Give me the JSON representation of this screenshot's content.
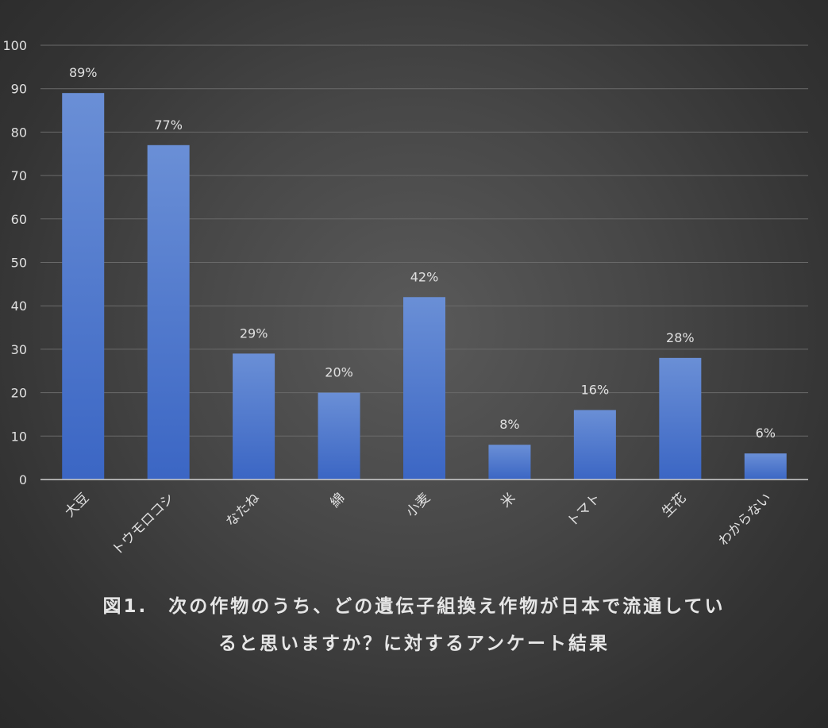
{
  "chart_data": {
    "type": "bar",
    "categories": [
      "大豆",
      "トウモロコシ",
      "なたね",
      "綿",
      "小麦",
      "米",
      "トマト",
      "生花",
      "わからない"
    ],
    "values": [
      89,
      77,
      29,
      20,
      42,
      8,
      16,
      28,
      6
    ],
    "data_labels": [
      "89%",
      "77%",
      "29%",
      "20%",
      "42%",
      "8%",
      "16%",
      "28%",
      "6%"
    ],
    "ylim": [
      0,
      100
    ],
    "yticks": [
      0,
      10,
      20,
      30,
      40,
      50,
      60,
      70,
      80,
      90,
      100
    ],
    "grid": true,
    "legend": "none",
    "colors": {
      "bar_top": "#6a8fd6",
      "bar_bottom": "#3b66c4",
      "grid": "#6a6a6a",
      "axis": "#d0d0d0",
      "text": "#e0e0e0"
    }
  },
  "caption": {
    "line1": "図1.　次の作物のうち、どの遺伝子組換え作物が日本で流通してい",
    "line2": "ると思いますか？に対するアンケート結果"
  }
}
